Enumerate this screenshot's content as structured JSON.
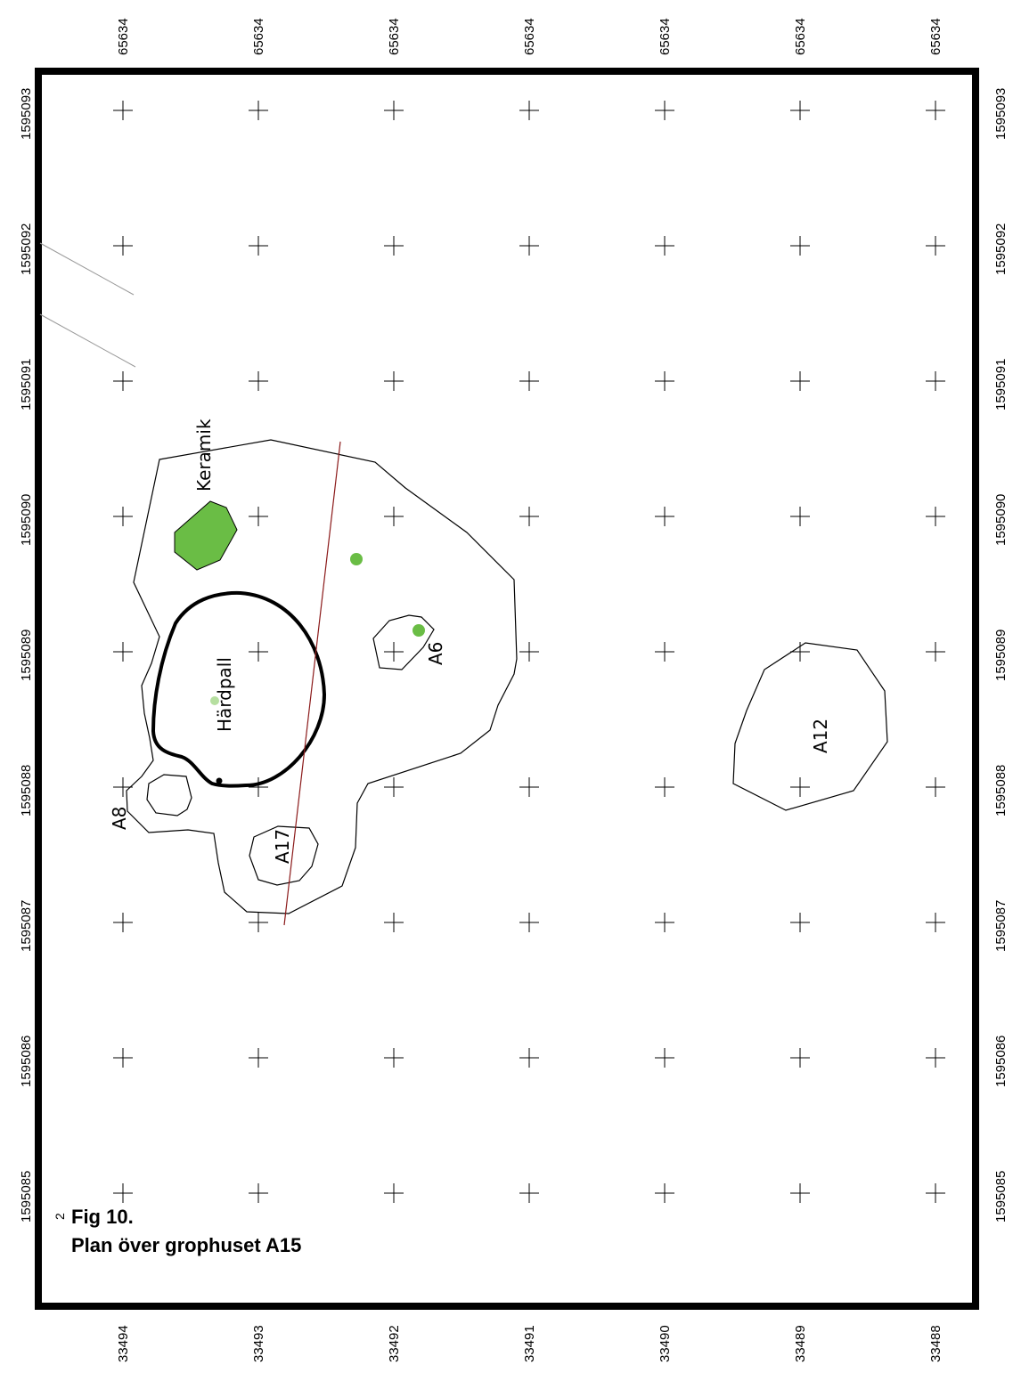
{
  "grid": {
    "top_labels": [
      "65634",
      "65634",
      "65634",
      "65634",
      "65634",
      "65634",
      "65634"
    ],
    "bottom_labels": [
      "33494",
      "33493",
      "33492",
      "33491",
      "33490",
      "33489",
      "33488"
    ],
    "side_labels": [
      "1595093",
      "1595092",
      "1595091",
      "1595090",
      "1595089",
      "1595088",
      "1595087",
      "1595086",
      "1595085"
    ]
  },
  "features": {
    "keramik": "Keramik",
    "hardpall": "Härdpall",
    "a6": "A6",
    "a8": "A8",
    "a12": "A12",
    "a17": "A17"
  },
  "caption": {
    "line1": "Fig 10.",
    "line2": "Plan över grophuset A15",
    "small_mark": "2"
  },
  "colors": {
    "frame": "#000000",
    "find_fill": "#6abd45",
    "section_line": "#8b1a1a",
    "faint_line": "#9a9a9a"
  }
}
